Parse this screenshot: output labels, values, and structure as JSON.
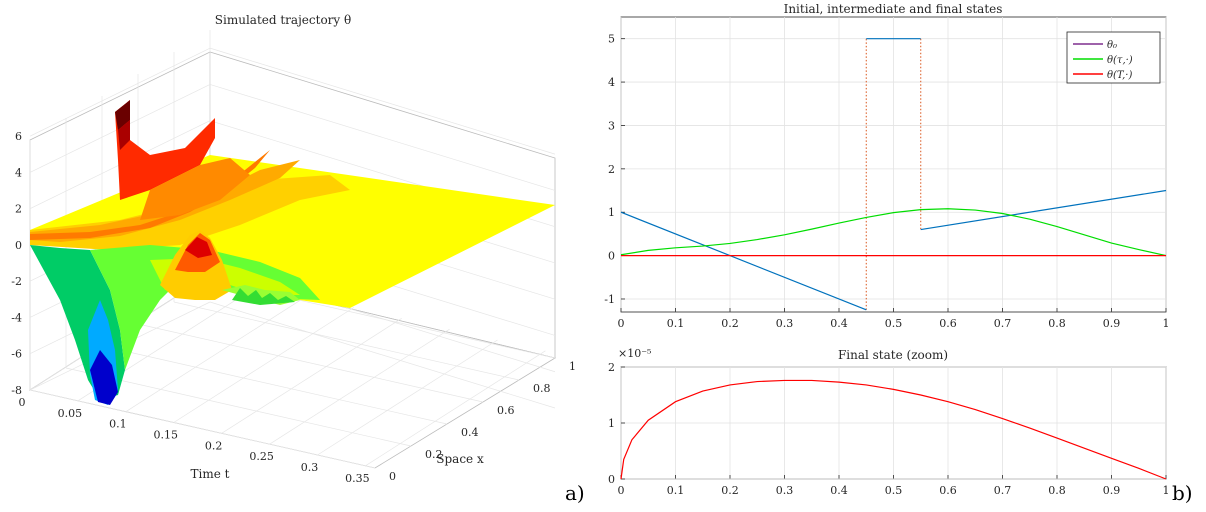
{
  "panel_labels": {
    "a": "a)",
    "b": "b)"
  },
  "chart_data": [
    {
      "type": "surface",
      "title": "Simulated trajectory θ",
      "xlabel": "Time t",
      "ylabel": "Space x",
      "x_ticks": [
        "0",
        "0.05",
        "0.1",
        "0.15",
        "0.2",
        "0.25",
        "0.3",
        "0.35"
      ],
      "y_ticks": [
        "0",
        "0.2",
        "0.4",
        "0.6",
        "0.8",
        "1"
      ],
      "z_ticks": [
        "-8",
        "-6",
        "-4",
        "-2",
        "0",
        "2",
        "4",
        "6"
      ],
      "xlim": [
        0,
        0.36
      ],
      "ylim": [
        0,
        1
      ],
      "zlim": [
        -8,
        7
      ],
      "colormap": [
        "#0000aa",
        "#0055ff",
        "#00ccff",
        "#00ff88",
        "#88ff00",
        "#ffff00",
        "#ffaa00",
        "#ff5500",
        "#ff0000",
        "#880000",
        "#000000"
      ],
      "grid": true,
      "surface": {
        "peak_value": 6.5,
        "trough_value": -7.9,
        "final_value": 0
      }
    },
    {
      "type": "line",
      "title": "Initial, intermediate and final states",
      "xlim": [
        0,
        1
      ],
      "ylim": [
        -1.3,
        5.5
      ],
      "x_ticks": [
        "0",
        "0.1",
        "0.2",
        "0.3",
        "0.4",
        "0.5",
        "0.6",
        "0.7",
        "0.8",
        "0.9",
        "1"
      ],
      "y_ticks": [
        "-1",
        "0",
        "1",
        "2",
        "3",
        "4",
        "5"
      ],
      "grid": true,
      "legend_position": "top-right",
      "legend": [
        {
          "label": "θ₀",
          "color": "#7e2f8e"
        },
        {
          "label": "θ(τ,·)",
          "color": "#00dd00"
        },
        {
          "label": "θ(T,·)",
          "color": "#ff0000"
        }
      ],
      "series": [
        {
          "name": "θ₀",
          "color": "#0072bd",
          "segments": [
            {
              "x": [
                0,
                0.45
              ],
              "y": [
                1.0,
                -1.25
              ]
            },
            {
              "x": [
                0.45,
                0.55
              ],
              "y": [
                5,
                5
              ]
            },
            {
              "x": [
                0.55,
                1.0
              ],
              "y": [
                0.6,
                1.5
              ]
            }
          ],
          "jumps": [
            {
              "x": 0.45,
              "y": [
                -1.25,
                5
              ]
            },
            {
              "x": 0.55,
              "y": [
                5,
                0.6
              ]
            }
          ],
          "jump_color": "#d95319"
        },
        {
          "name": "θ(τ,·)",
          "color": "#00dd00",
          "x": [
            0,
            0.05,
            0.1,
            0.15,
            0.2,
            0.25,
            0.3,
            0.35,
            0.4,
            0.45,
            0.5,
            0.55,
            0.6,
            0.65,
            0.7,
            0.75,
            0.8,
            0.85,
            0.9,
            0.95,
            1.0
          ],
          "y": [
            0.02,
            0.12,
            0.18,
            0.22,
            0.28,
            0.37,
            0.48,
            0.61,
            0.75,
            0.88,
            0.99,
            1.06,
            1.08,
            1.05,
            0.97,
            0.84,
            0.67,
            0.48,
            0.29,
            0.14,
            0.0
          ]
        },
        {
          "name": "θ(T,·)",
          "color": "#ff0000",
          "x": [
            0,
            1
          ],
          "y": [
            0,
            0
          ]
        }
      ]
    },
    {
      "type": "line",
      "title": "Final state (zoom)",
      "exponent_label": "×10⁻⁵",
      "xlim": [
        0,
        1
      ],
      "ylim": [
        0,
        2
      ],
      "x_ticks": [
        "0",
        "0.1",
        "0.2",
        "0.3",
        "0.4",
        "0.5",
        "0.6",
        "0.7",
        "0.8",
        "0.9",
        "1"
      ],
      "y_ticks": [
        "0",
        "1",
        "2"
      ],
      "grid": true,
      "series": [
        {
          "name": "θ(T,·)",
          "color": "#ff0000",
          "x": [
            0,
            0.005,
            0.02,
            0.05,
            0.1,
            0.15,
            0.2,
            0.25,
            0.3,
            0.35,
            0.4,
            0.45,
            0.5,
            0.55,
            0.6,
            0.65,
            0.7,
            0.75,
            0.8,
            0.85,
            0.9,
            0.95,
            1.0
          ],
          "y": [
            0,
            0.35,
            0.7,
            1.05,
            1.38,
            1.57,
            1.68,
            1.74,
            1.76,
            1.76,
            1.73,
            1.68,
            1.6,
            1.5,
            1.38,
            1.24,
            1.08,
            0.91,
            0.73,
            0.55,
            0.37,
            0.19,
            0
          ]
        }
      ]
    }
  ]
}
